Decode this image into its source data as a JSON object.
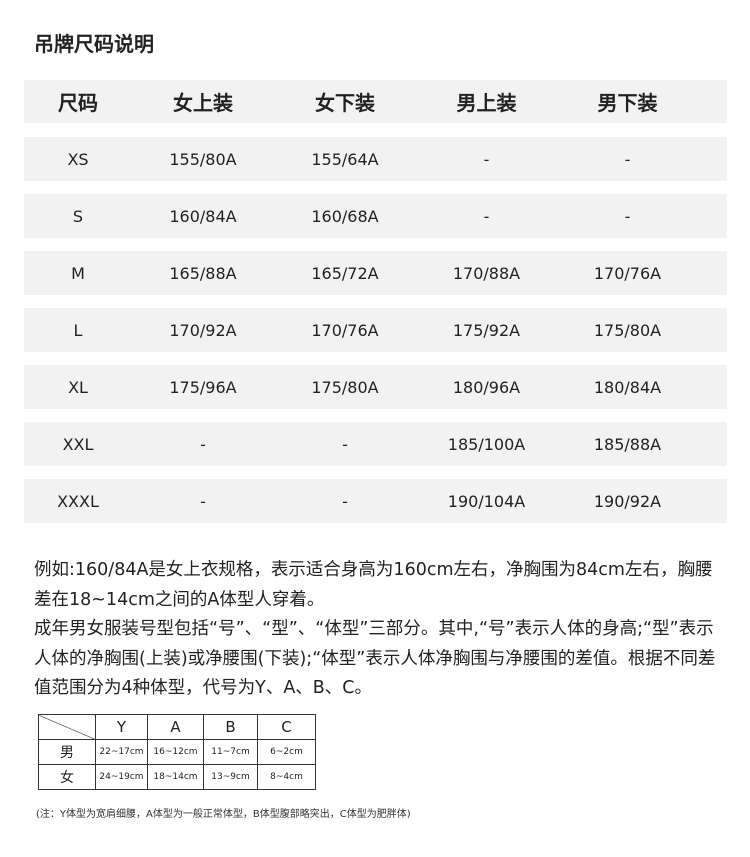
{
  "title": "吊牌尺码说明",
  "size_table": {
    "headers": [
      "尺码",
      "女上装",
      "女下装",
      "男上装",
      "男下装"
    ],
    "rows": [
      [
        "XS",
        "155/80A",
        "155/64A",
        "-",
        "-"
      ],
      [
        "S",
        "160/84A",
        "160/68A",
        "-",
        "-"
      ],
      [
        "M",
        "165/88A",
        "165/72A",
        "170/88A",
        "170/76A"
      ],
      [
        "L",
        "170/92A",
        "170/76A",
        "175/92A",
        "175/80A"
      ],
      [
        "XL",
        "175/96A",
        "175/80A",
        "180/96A",
        "180/84A"
      ],
      [
        "XXL",
        "-",
        "-",
        "185/100A",
        "185/88A"
      ],
      [
        "XXXL",
        "-",
        "-",
        "190/104A",
        "190/92A"
      ]
    ]
  },
  "paragraphs": [
    "例如:160/84A是女上衣规格，表示适合身高为160cm左右，净胸围为84cm左右，胸腰差在18~14cm之间的A体型人穿着。",
    "成年男女服装号型包括“号”、“型”、“体型”三部分。其中,“号”表示人体的身高;“型”表示人体的净胸围(上装)或净腰围(下装);“体型”表示人体净胸围与净腰围的差值。根据不同差值范围分为4种体型，代号为Y、A、B、C。"
  ],
  "type_table": {
    "headers": [
      "Y",
      "A",
      "B",
      "C"
    ],
    "rows": [
      {
        "label": "男",
        "values": [
          "22~17cm",
          "16~12cm",
          "11~7cm",
          "6~2cm"
        ]
      },
      {
        "label": "女",
        "values": [
          "24~19cm",
          "18~14cm",
          "13~9cm",
          "8~4cm"
        ]
      }
    ]
  },
  "note": "(注：Y体型为宽肩细腰，A体型为一般正常体型，B体型腹部略突出，C体型为肥胖体)"
}
